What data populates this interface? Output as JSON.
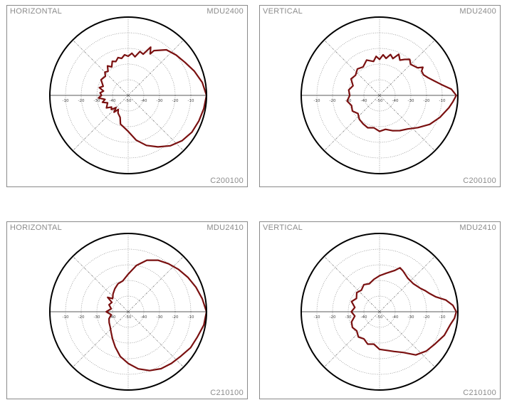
{
  "chart_data": [
    {
      "type": "polar",
      "label_top_left": "HORIZONTAL",
      "label_top_right": "MDU2400",
      "label_bottom_right": "C200100",
      "radial_unit": "dB",
      "radial_range": [
        -50,
        0
      ],
      "rings": [
        -50,
        -40,
        -30,
        -20,
        -10,
        0
      ],
      "tick_labels": [
        "-10",
        "-20",
        "-30",
        "-40",
        "-50",
        "-40",
        "-30",
        "-20",
        "-10"
      ],
      "angle_convention": "degrees counterclockwise from right (0 = right, 90 = top)",
      "series": [
        {
          "color": "#7a1010",
          "points": [
            [
              0,
              0
            ],
            [
              10,
              -2
            ],
            [
              20,
              -5
            ],
            [
              30,
              -8
            ],
            [
              40,
              -10
            ],
            [
              50,
              -12
            ],
            [
              60,
              -17
            ],
            [
              62,
              -20
            ],
            [
              65,
              -16
            ],
            [
              70,
              -22
            ],
            [
              75,
              -21
            ],
            [
              80,
              -25
            ],
            [
              85,
              -23
            ],
            [
              90,
              -25
            ],
            [
              95,
              -24
            ],
            [
              100,
              -26
            ],
            [
              105,
              -25
            ],
            [
              110,
              -27
            ],
            [
              115,
              -26
            ],
            [
              120,
              -29
            ],
            [
              125,
              -27
            ],
            [
              130,
              -30
            ],
            [
              135,
              -29
            ],
            [
              140,
              -31
            ],
            [
              150,
              -30
            ],
            [
              160,
              -33
            ],
            [
              165,
              -31
            ],
            [
              170,
              -34
            ],
            [
              175,
              -32
            ],
            [
              180,
              -33
            ],
            [
              185,
              -31
            ],
            [
              190,
              -35
            ],
            [
              195,
              -33
            ],
            [
              200,
              -36
            ],
            [
              210,
              -34
            ],
            [
              215,
              -37
            ],
            [
              220,
              -36
            ],
            [
              225,
              -39
            ],
            [
              230,
              -36
            ],
            [
              235,
              -39
            ],
            [
              240,
              -37
            ],
            [
              250,
              -35
            ],
            [
              255,
              -31
            ],
            [
              260,
              -30
            ],
            [
              270,
              -27
            ],
            [
              280,
              -21
            ],
            [
              290,
              -16
            ],
            [
              300,
              -12
            ],
            [
              310,
              -8
            ],
            [
              320,
              -5
            ],
            [
              330,
              -3
            ],
            [
              340,
              -2
            ],
            [
              350,
              -1
            ]
          ]
        }
      ]
    },
    {
      "type": "polar",
      "label_top_left": "VERTICAL",
      "label_top_right": "MDU2400",
      "label_bottom_right": "C200100",
      "radial_unit": "dB",
      "radial_range": [
        -50,
        0
      ],
      "rings": [
        -50,
        -40,
        -30,
        -20,
        -10,
        0
      ],
      "tick_labels": [
        "-10",
        "-20",
        "-30",
        "-40",
        "-50",
        "-40",
        "-30",
        "-20",
        "-10"
      ],
      "angle_convention": "degrees counterclockwise from right (0 = right, 90 = top)",
      "series": [
        {
          "color": "#7a1010",
          "points": [
            [
              0,
              -1
            ],
            [
              5,
              -4
            ],
            [
              10,
              -10
            ],
            [
              15,
              -14
            ],
            [
              20,
              -17
            ],
            [
              25,
              -19
            ],
            [
              30,
              -19
            ],
            [
              33,
              -17
            ],
            [
              36,
              -20
            ],
            [
              40,
              -21
            ],
            [
              45,
              -22
            ],
            [
              50,
              -20
            ],
            [
              55,
              -22
            ],
            [
              60,
              -24
            ],
            [
              65,
              -21
            ],
            [
              70,
              -25
            ],
            [
              75,
              -23
            ],
            [
              80,
              -26
            ],
            [
              85,
              -24
            ],
            [
              90,
              -27
            ],
            [
              95,
              -25
            ],
            [
              100,
              -28
            ],
            [
              110,
              -26
            ],
            [
              120,
              -29
            ],
            [
              130,
              -28
            ],
            [
              140,
              -30
            ],
            [
              150,
              -29
            ],
            [
              160,
              -32
            ],
            [
              170,
              -30
            ],
            [
              180,
              -31
            ],
            [
              190,
              -29
            ],
            [
              200,
              -31
            ],
            [
              210,
              -30
            ],
            [
              220,
              -32
            ],
            [
              230,
              -30
            ],
            [
              240,
              -29
            ],
            [
              250,
              -28
            ],
            [
              260,
              -29
            ],
            [
              270,
              -27
            ],
            [
              280,
              -28
            ],
            [
              290,
              -26
            ],
            [
              300,
              -24
            ],
            [
              310,
              -22
            ],
            [
              320,
              -18
            ],
            [
              330,
              -13
            ],
            [
              340,
              -9
            ],
            [
              350,
              -5
            ],
            [
              355,
              -3
            ]
          ]
        }
      ]
    },
    {
      "type": "polar",
      "label_top_left": "HORIZONTAL",
      "label_top_right": "MDU2410",
      "label_bottom_right": "C210100",
      "radial_unit": "dB",
      "radial_range": [
        -50,
        0
      ],
      "rings": [
        -50,
        -40,
        -30,
        -20,
        -10,
        0
      ],
      "tick_labels": [
        "-10",
        "-20",
        "-30",
        "-40",
        "-50",
        "-40",
        "-30",
        "-20",
        "-10"
      ],
      "angle_convention": "degrees counterclockwise from right (0 = right, 90 = top)",
      "series": [
        {
          "color": "#7a1010",
          "points": [
            [
              0,
              0
            ],
            [
              10,
              -2
            ],
            [
              20,
              -4
            ],
            [
              30,
              -6
            ],
            [
              40,
              -8
            ],
            [
              50,
              -10
            ],
            [
              60,
              -12
            ],
            [
              70,
              -15
            ],
            [
              80,
              -20
            ],
            [
              90,
              -26
            ],
            [
              100,
              -30
            ],
            [
              110,
              -31
            ],
            [
              120,
              -33
            ],
            [
              130,
              -35
            ],
            [
              140,
              -37
            ],
            [
              145,
              -34
            ],
            [
              150,
              -38
            ],
            [
              160,
              -37
            ],
            [
              170,
              -39
            ],
            [
              180,
              -36
            ],
            [
              190,
              -39
            ],
            [
              200,
              -37
            ],
            [
              210,
              -36
            ],
            [
              220,
              -35
            ],
            [
              230,
              -33
            ],
            [
              240,
              -30
            ],
            [
              250,
              -26
            ],
            [
              260,
              -21
            ],
            [
              270,
              -17
            ],
            [
              280,
              -13
            ],
            [
              290,
              -10
            ],
            [
              300,
              -8
            ],
            [
              310,
              -7
            ],
            [
              320,
              -6
            ],
            [
              330,
              -4
            ],
            [
              340,
              -3
            ],
            [
              350,
              -1
            ]
          ]
        }
      ]
    },
    {
      "type": "polar",
      "label_top_left": "VERTICAL",
      "label_top_right": "MDU2410",
      "label_bottom_right": "C210100",
      "radial_unit": "dB",
      "radial_range": [
        -50,
        0
      ],
      "rings": [
        -50,
        -40,
        -30,
        -20,
        -10,
        0
      ],
      "tick_labels": [
        "-10",
        "-20",
        "-30",
        "-40",
        "-50",
        "-40",
        "-30",
        "-20",
        "-10"
      ],
      "angle_convention": "degrees counterclockwise from right (0 = right, 90 = top)",
      "series": [
        {
          "color": "#7a1010",
          "points": [
            [
              0,
              -1
            ],
            [
              5,
              -3
            ],
            [
              10,
              -7
            ],
            [
              15,
              -13
            ],
            [
              20,
              -16
            ],
            [
              25,
              -18
            ],
            [
              30,
              -20
            ],
            [
              40,
              -22
            ],
            [
              50,
              -22
            ],
            [
              60,
              -20
            ],
            [
              65,
              -19
            ],
            [
              70,
              -22
            ],
            [
              80,
              -25
            ],
            [
              90,
              -27
            ],
            [
              100,
              -29
            ],
            [
              110,
              -31
            ],
            [
              120,
              -30
            ],
            [
              130,
              -32
            ],
            [
              140,
              -31
            ],
            [
              150,
              -33
            ],
            [
              160,
              -31
            ],
            [
              170,
              -34
            ],
            [
              180,
              -32
            ],
            [
              190,
              -34
            ],
            [
              200,
              -31
            ],
            [
              210,
              -30
            ],
            [
              220,
              -31
            ],
            [
              230,
              -29
            ],
            [
              240,
              -30
            ],
            [
              250,
              -28
            ],
            [
              260,
              -29
            ],
            [
              270,
              -26
            ],
            [
              280,
              -25
            ],
            [
              290,
              -23
            ],
            [
              300,
              -20
            ],
            [
              310,
              -14
            ],
            [
              320,
              -11
            ],
            [
              330,
              -9
            ],
            [
              340,
              -6
            ],
            [
              350,
              -4
            ],
            [
              355,
              -2
            ]
          ]
        }
      ]
    }
  ]
}
